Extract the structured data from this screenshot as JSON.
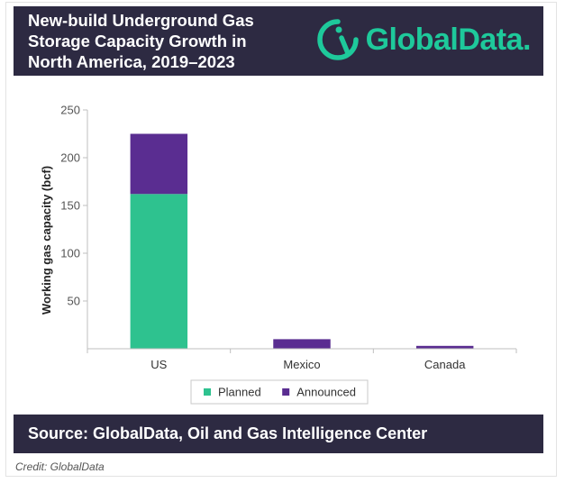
{
  "header": {
    "title": "New-build Underground Gas\nStorage Capacity Growth in\nNorth America, 2019–2023",
    "brand": "GlobalData."
  },
  "footer": {
    "source": "Source: GlobalData, Oil and Gas Intelligence Center",
    "credit": "Credit: GlobalData"
  },
  "colors": {
    "header_bg": "#2d2a42",
    "brand": "#1ec99b",
    "planned": "#2ec28f",
    "announced": "#5a2d91"
  },
  "icons": {
    "brand_logo": "globaldata-logo-icon"
  },
  "chart_data": {
    "type": "bar",
    "stacked": true,
    "categories": [
      "US",
      "Mexico",
      "Canada"
    ],
    "series": [
      {
        "name": "Planned",
        "values": [
          162,
          0,
          0
        ],
        "color": "#2ec28f"
      },
      {
        "name": "Announced",
        "values": [
          63,
          10,
          3
        ],
        "color": "#5a2d91"
      }
    ],
    "ylabel": "Working gas capacity (bcf)",
    "xlabel": "",
    "ylim": [
      0,
      250
    ],
    "yticks": [
      50,
      100,
      150,
      200,
      250
    ],
    "grid": false,
    "legend": "bottom"
  }
}
